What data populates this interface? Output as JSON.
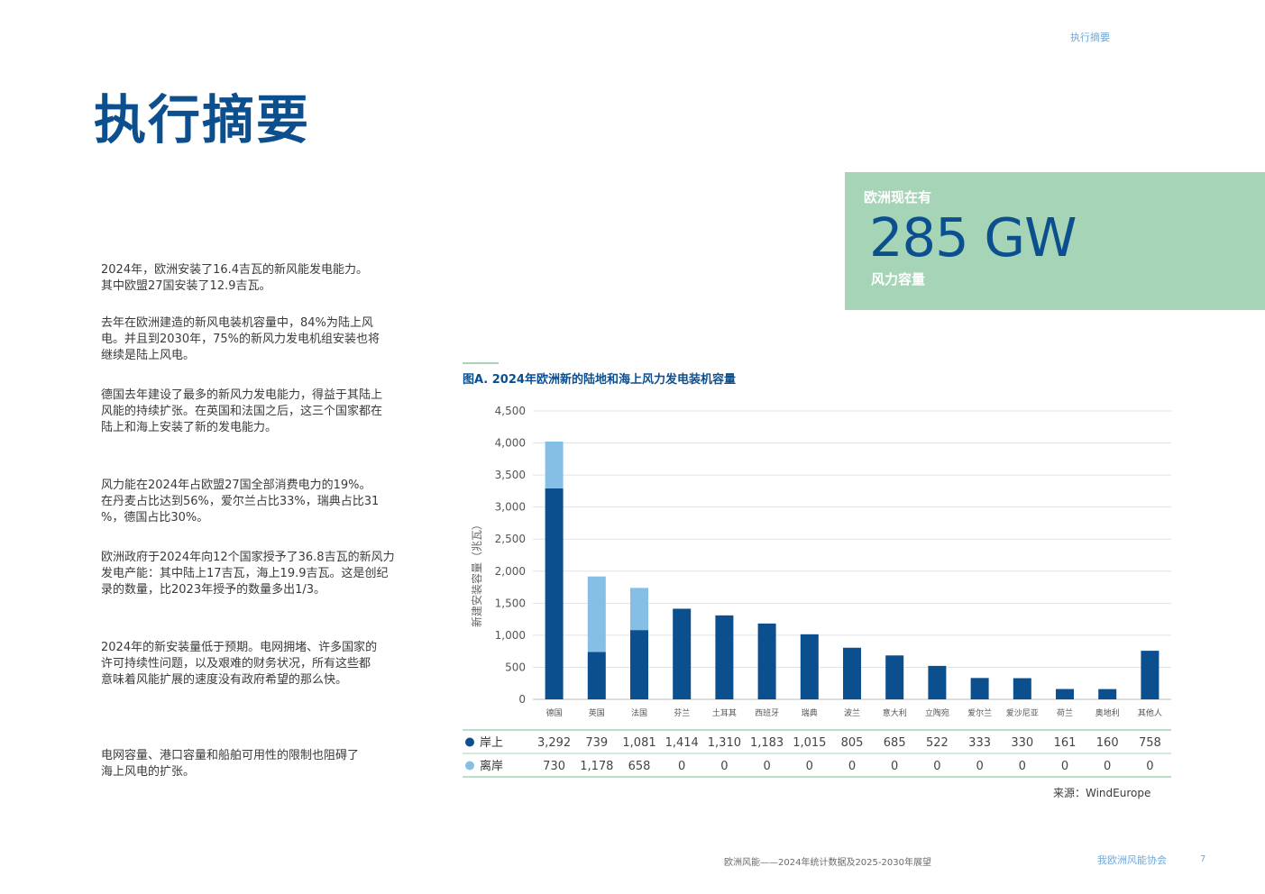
{
  "header": {
    "section": "执行摘要"
  },
  "page_title": "执行摘要",
  "stat_box": {
    "kicker": "欧洲现在有",
    "value": "285 GW",
    "caption": "风力容量"
  },
  "paragraphs": [
    [
      "2024年，欧洲安装了16.4吉瓦的新风能发电能力。",
      "其中欧盟27国安装了12.9吉瓦。"
    ],
    [
      "去年在欧洲建造的新风电装机容量中，84%为陆上风",
      "电。并且到2030年，75%的新风力发电机组安装也将",
      "继续是陆上风电。"
    ],
    [
      "德国去年建设了最多的新风力发电能力，得益于其陆上",
      "风能的持续扩张。在英国和法国之后，这三个国家都在",
      "陆上和海上安装了新的发电能力。"
    ],
    [
      "风力能在2024年占欧盟27国全部消费电力的19%。",
      "在丹麦占比达到56%，爱尔兰占比33%，瑞典占比31",
      "%，德国占比30%。"
    ],
    [
      "欧洲政府于2024年向12个国家授予了36.8吉瓦的新风力",
      "发电产能：其中陆上17吉瓦，海上19.9吉瓦。这是创纪",
      "录的数量，比2023年授予的数量多出1/3。"
    ],
    [
      "2024年的新安装量低于预期。电网拥堵、许多国家的",
      "许可持续性问题，以及艰难的财务状况，所有这些都",
      "意味着风能扩展的速度没有政府希望的那么快。"
    ],
    [
      "电网容量、港口容量和船舶可用性的限制也阻碍了",
      "海上风电的扩张。"
    ]
  ],
  "chart_data": {
    "type": "bar",
    "stacked": true,
    "title": "图A. 2024年欧洲新的陆地和海上风力发电装机容量",
    "ylabel": "新建安装容量（兆瓦）",
    "ylim": [
      0,
      4500
    ],
    "yticks": [
      "0",
      "500",
      "1,000",
      "1,500",
      "2,000",
      "2,500",
      "3,000",
      "3,500",
      "4,000",
      "4,500"
    ],
    "grid": true,
    "categories": [
      "德国",
      "英国",
      "法国",
      "芬兰",
      "土耳其",
      "西班牙",
      "瑞典",
      "波兰",
      "意大利",
      "立陶宛",
      "爱尔兰",
      "爱沙尼亚",
      "荷兰",
      "奥地利",
      "其他人"
    ],
    "series": [
      {
        "name": "岸上",
        "color": "#0b4f8f",
        "values": [
          3292,
          739,
          1081,
          1414,
          1310,
          1183,
          1015,
          805,
          685,
          522,
          333,
          330,
          161,
          160,
          758
        ]
      },
      {
        "name": "离岸",
        "color": "#85bfe6",
        "values": [
          730,
          1178,
          658,
          0,
          0,
          0,
          0,
          0,
          0,
          0,
          0,
          0,
          0,
          0,
          0
        ]
      }
    ],
    "table_rows": [
      {
        "name": "岸上",
        "values": [
          "3,292",
          "739",
          "1,081",
          "1,414",
          "1,310",
          "1,183",
          "1,015",
          "805",
          "685",
          "522",
          "333",
          "330",
          "161",
          "160",
          "758"
        ]
      },
      {
        "name": "离岸",
        "values": [
          "730",
          "1,178",
          "658",
          "0",
          "0",
          "0",
          "0",
          "0",
          "0",
          "0",
          "0",
          "0",
          "0",
          "0",
          "0"
        ]
      }
    ],
    "source": "来源：WindEurope"
  },
  "footer": {
    "doc_title": "欧洲风能——2024年统计数据及2025-2030年展望",
    "org": "我欧洲风能协会",
    "page": "7"
  }
}
